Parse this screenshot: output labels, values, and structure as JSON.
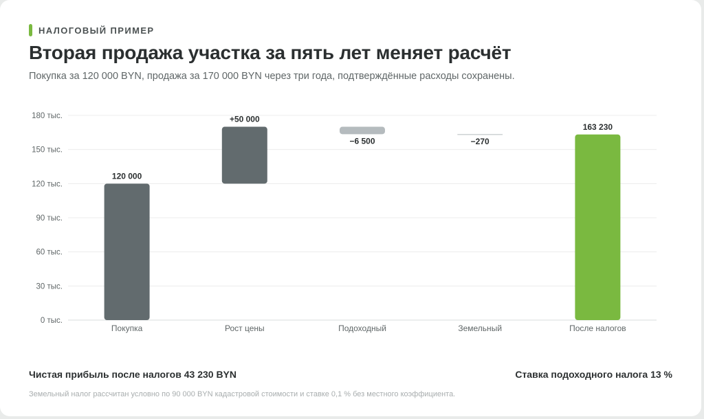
{
  "header": {
    "eyebrow": "НАЛОГОВЫЙ ПРИМЕР",
    "title": "Вторая продажа участка за пять лет меняет расчёт",
    "subtitle": "Покупка за 120 000 BYN, продажа за 170 000 BYN через три года, подтверждённые расходы сохранены."
  },
  "colors": {
    "accent": "#7ab940",
    "bar": "#626b6e",
    "negative": "#b5bbbe",
    "grid": "#ececec",
    "text": "#2b2f30",
    "tick": "#5f6667"
  },
  "chart_data": {
    "type": "bar",
    "subtype": "waterfall",
    "categories": [
      "Покупка",
      "Рост цены",
      "Подоходный",
      "Земельный",
      "После налогов"
    ],
    "values": [
      120000,
      50000,
      -6500,
      -270,
      163230
    ],
    "kinds": [
      "total",
      "delta",
      "delta",
      "delta",
      "total"
    ],
    "data_labels": [
      "120 000",
      "+50 000",
      "−6 500",
      "−270",
      "163 230"
    ],
    "ylim": [
      0,
      180000
    ],
    "yticks": [
      0,
      30000,
      60000,
      90000,
      120000,
      150000,
      180000
    ],
    "ytick_labels": [
      "0 тыс.",
      "30 тыс.",
      "60 тыс.",
      "90 тыс.",
      "120 тыс.",
      "150 тыс.",
      "180 тыс."
    ],
    "grid": true,
    "legend": "none"
  },
  "footer": {
    "net_profit": "Чистая прибыль после налогов 43 230 BYN",
    "rate": "Ставка подоходного налога 13 %",
    "note": "Земельный налог рассчитан условно по 90 000 BYN кадастровой стоимости и ставке 0,1 % без местного коэффициента."
  }
}
